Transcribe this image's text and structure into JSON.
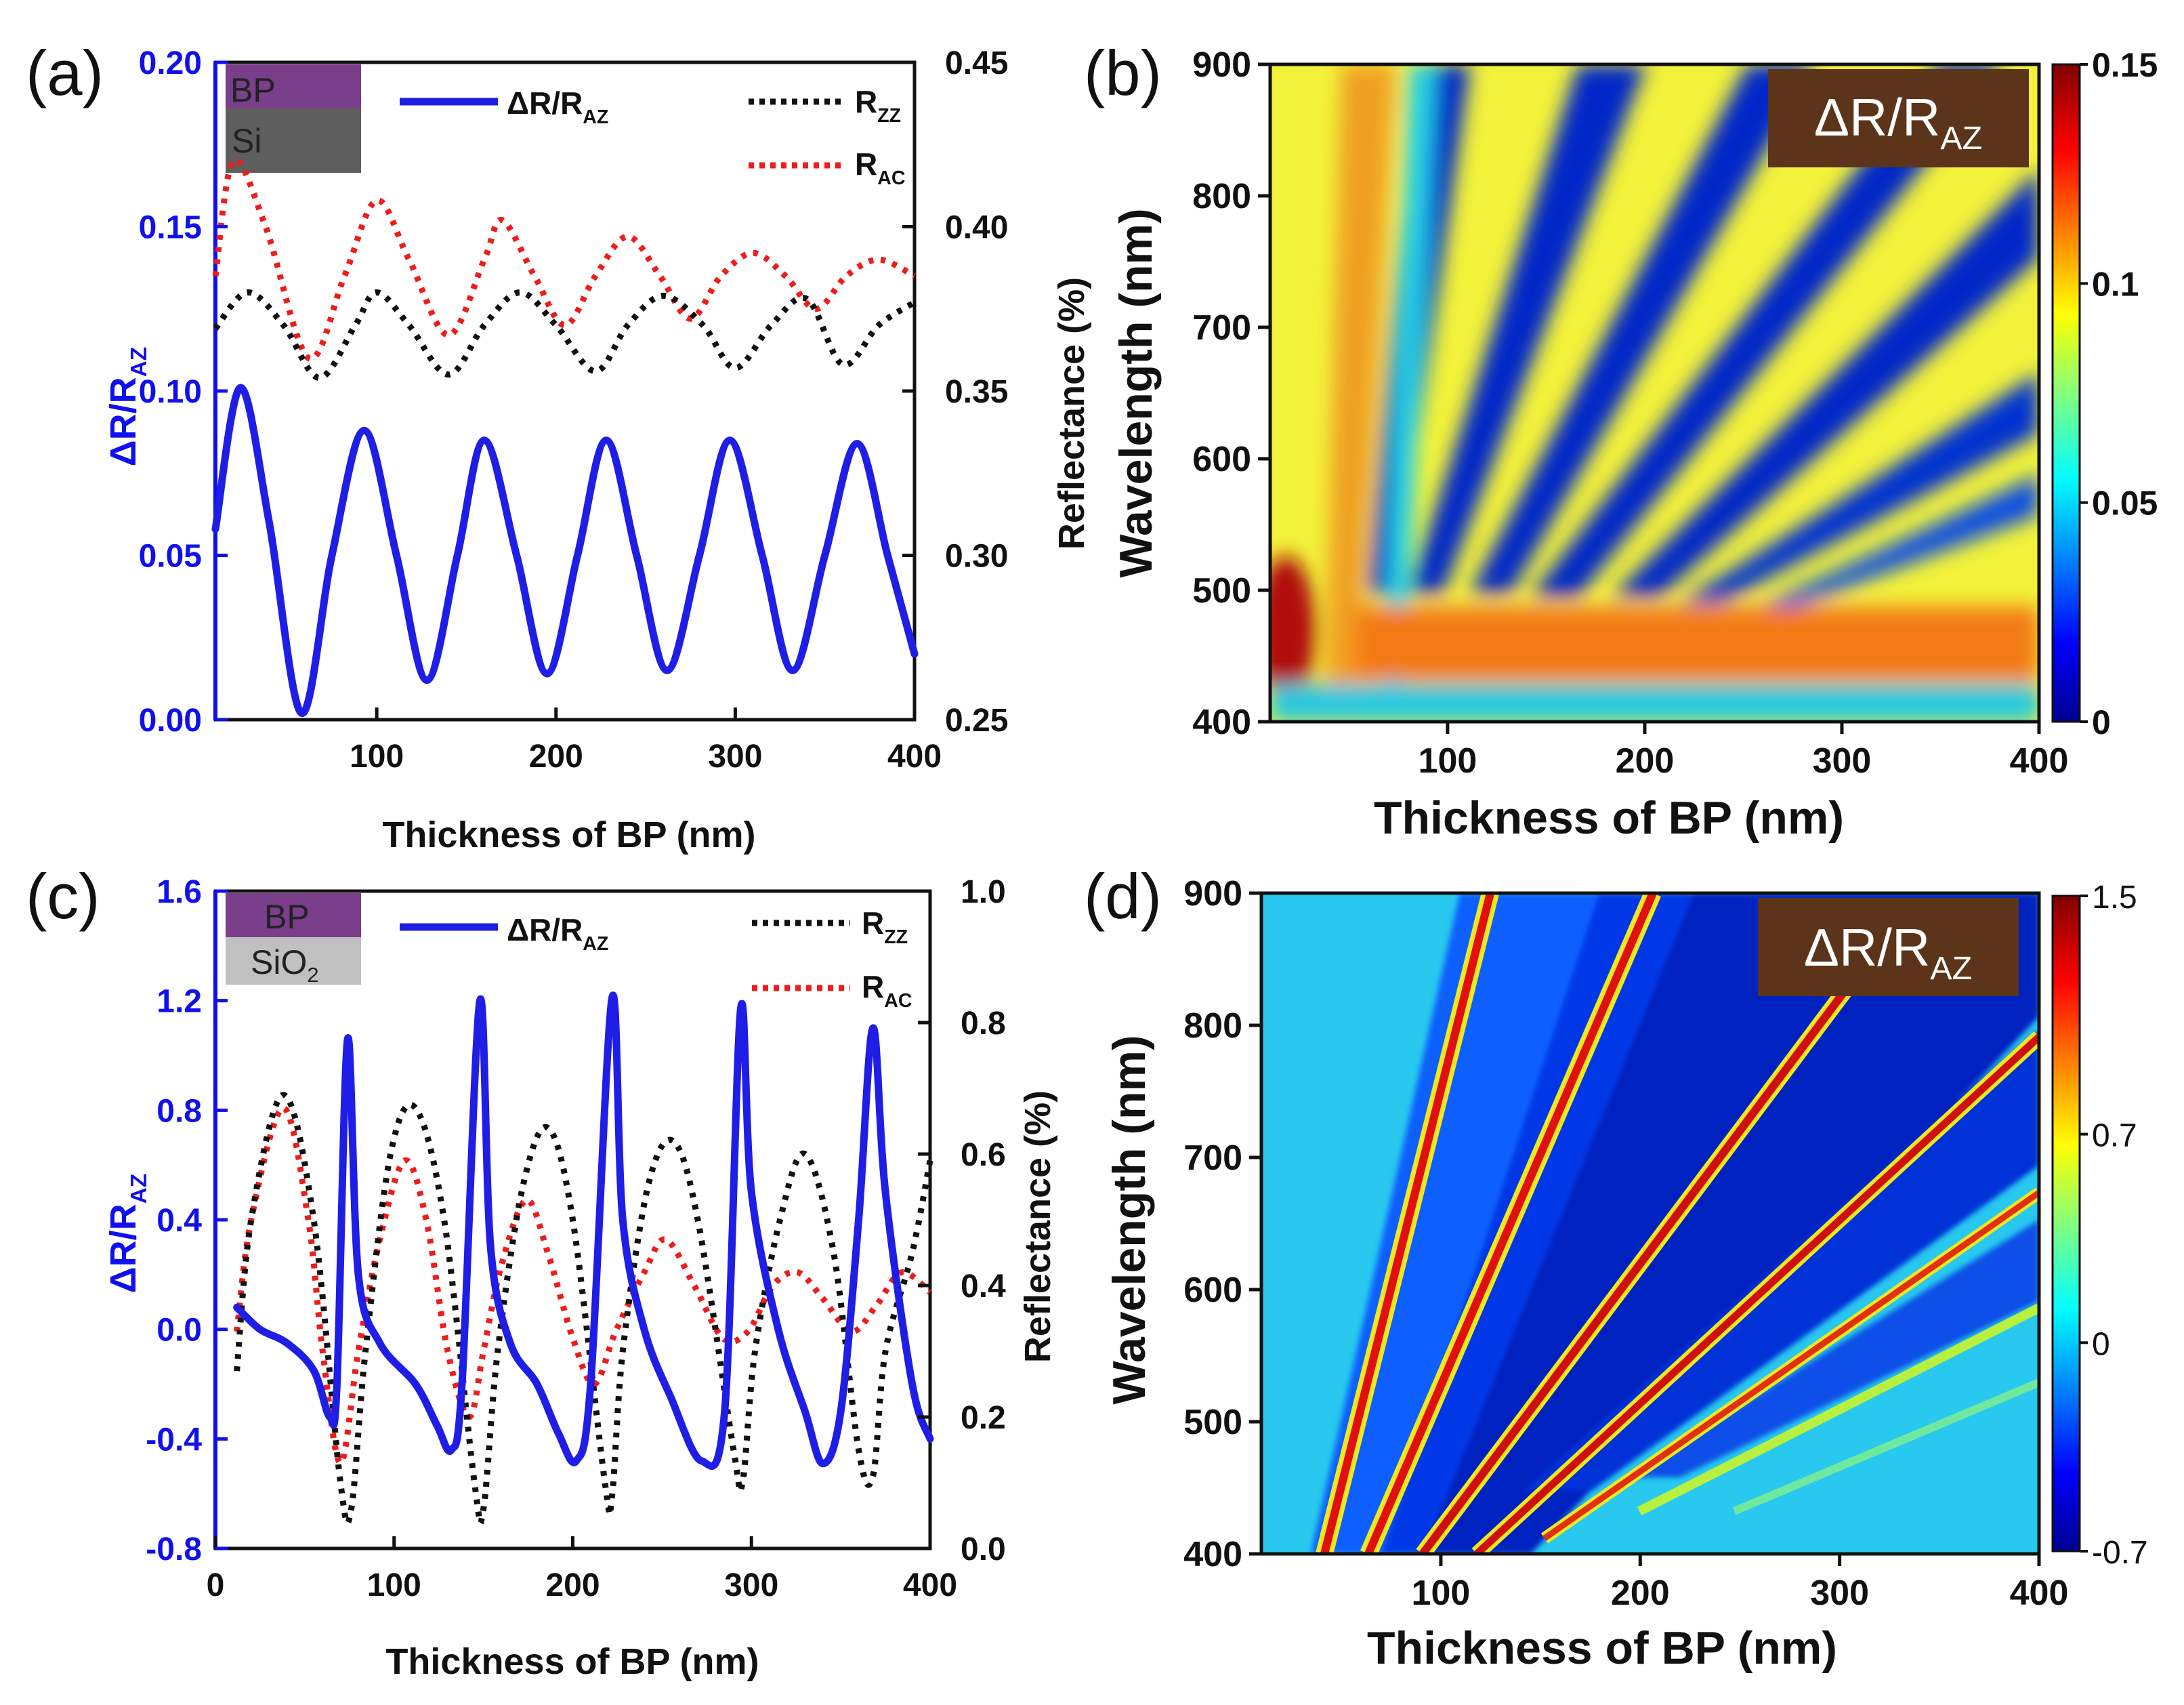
{
  "chart_data": [
    {
      "panel": "(a)",
      "type": "line",
      "inset": [
        "BP",
        "Si"
      ],
      "xlabel": "Thickness of BP (nm)",
      "ylabel_left": "ΔR/R",
      "ylabel_left_sub": "AZ",
      "ylabel_right": "Reflectance (%)",
      "xlim": [
        10,
        400
      ],
      "ylim_left": [
        0,
        0.2
      ],
      "ylim_right": [
        0.25,
        0.45
      ],
      "xticks": [
        "100",
        "200",
        "300",
        "400"
      ],
      "yticks_left": [
        "0.00",
        "0.05",
        "0.10",
        "0.15",
        "0.20"
      ],
      "yticks_right": [
        "0.25",
        "0.30",
        "0.35",
        "0.40",
        "0.45"
      ],
      "series": [
        {
          "name": "ΔR/R",
          "sub": "AZ",
          "axis": "left",
          "color": "#1e1ee6",
          "style": "solid",
          "x": [
            10,
            24,
            40,
            58,
            75,
            93,
            111,
            128,
            145,
            160,
            178,
            195,
            212,
            228,
            245,
            262,
            280,
            297,
            315,
            332,
            350,
            368,
            385,
            400
          ],
          "y": [
            0.058,
            0.101,
            0.06,
            0.002,
            0.05,
            0.088,
            0.05,
            0.012,
            0.05,
            0.085,
            0.05,
            0.014,
            0.05,
            0.085,
            0.05,
            0.015,
            0.05,
            0.085,
            0.05,
            0.015,
            0.05,
            0.084,
            0.05,
            0.02
          ]
        },
        {
          "name": "R",
          "sub": "ZZ",
          "axis": "right",
          "color": "#111111",
          "style": "dotted",
          "x": [
            10,
            28,
            48,
            68,
            88,
            100,
            118,
            140,
            160,
            180,
            200,
            222,
            240,
            260,
            282,
            300,
            320,
            340,
            360,
            380,
            400
          ],
          "y": [
            0.369,
            0.38,
            0.37,
            0.354,
            0.37,
            0.38,
            0.37,
            0.355,
            0.37,
            0.38,
            0.37,
            0.356,
            0.37,
            0.379,
            0.37,
            0.357,
            0.37,
            0.378,
            0.358,
            0.37,
            0.377
          ]
        },
        {
          "name": "R",
          "sub": "AC",
          "axis": "right",
          "color": "#ee1c1c",
          "style": "dotted",
          "x": [
            10,
            20,
            38,
            62,
            82,
            100,
            118,
            140,
            160,
            170,
            188,
            205,
            222,
            240,
            258,
            275,
            292,
            310,
            328,
            345,
            362,
            380,
            400
          ],
          "y": [
            0.385,
            0.42,
            0.4,
            0.36,
            0.385,
            0.408,
            0.39,
            0.367,
            0.39,
            0.402,
            0.385,
            0.37,
            0.385,
            0.397,
            0.385,
            0.372,
            0.385,
            0.392,
            0.385,
            0.375,
            0.385,
            0.39,
            0.385
          ]
        }
      ]
    },
    {
      "panel": "(b)",
      "type": "heatmap",
      "title": "ΔR/R",
      "title_sub": "AZ",
      "xlabel": "Thickness of BP (nm)",
      "ylabel": "Wavelength (nm)",
      "xlim": [
        10,
        400
      ],
      "ylim": [
        400,
        900
      ],
      "xticks": [
        "100",
        "200",
        "300",
        "400"
      ],
      "yticks": [
        "400",
        "500",
        "600",
        "700",
        "800",
        "900"
      ],
      "colorbar": {
        "min": 0,
        "max": 0.15,
        "ticks": [
          "0",
          "0.05",
          "0.1",
          "0.15"
        ]
      }
    },
    {
      "panel": "(c)",
      "type": "line",
      "inset": [
        "BP",
        "SiO",
        "2"
      ],
      "xlabel": "Thickness of BP (nm)",
      "ylabel_left": "ΔR/R",
      "ylabel_left_sub": "AZ",
      "ylabel_right": "Reflectance (%)",
      "xlim": [
        0,
        400
      ],
      "ylim_left": [
        -0.8,
        1.6
      ],
      "ylim_right": [
        0.0,
        1.0
      ],
      "xticks": [
        "0",
        "100",
        "200",
        "300",
        "400"
      ],
      "yticks_left": [
        "-0.8",
        "-0.4",
        "0.0",
        "0.4",
        "0.8",
        "1.2",
        "1.6"
      ],
      "yticks_right": [
        "0.0",
        "0.2",
        "0.4",
        "0.6",
        "0.8",
        "1.0"
      ],
      "series": [
        {
          "name": "ΔR/R",
          "sub": "AZ",
          "axis": "left",
          "color": "#1e1ee6",
          "style": "solid",
          "x": [
            12,
            25,
            40,
            55,
            64,
            68,
            74,
            80,
            92,
            112,
            124,
            132,
            138,
            148,
            154,
            165,
            180,
            192,
            202,
            210,
            222,
            228,
            240,
            255,
            272,
            285,
            294,
            300,
            315,
            330,
            340,
            350,
            360,
            368,
            375,
            390,
            400
          ],
          "y": [
            0.08,
            0.0,
            -0.05,
            -0.15,
            -0.32,
            -0.2,
            1.06,
            0.2,
            -0.05,
            -0.2,
            -0.35,
            -0.44,
            -0.2,
            1.2,
            0.3,
            -0.05,
            -0.2,
            -0.38,
            -0.48,
            -0.2,
            1.21,
            0.4,
            0.0,
            -0.25,
            -0.48,
            -0.3,
            1.17,
            0.5,
            0.0,
            -0.3,
            -0.49,
            -0.3,
            0.4,
            1.1,
            0.5,
            -0.2,
            -0.4
          ]
        },
        {
          "name": "R",
          "sub": "ZZ",
          "axis": "right",
          "color": "#111111",
          "style": "dotted",
          "x": [
            12,
            20,
            38,
            55,
            70,
            76,
            84,
            98,
            112,
            128,
            145,
            150,
            158,
            172,
            186,
            200,
            218,
            222,
            228,
            242,
            256,
            270,
            290,
            295,
            302,
            316,
            330,
            346,
            360,
            368,
            375,
            390,
            400
          ],
          "y": [
            0.27,
            0.5,
            0.69,
            0.5,
            0.1,
            0.06,
            0.3,
            0.6,
            0.67,
            0.5,
            0.1,
            0.06,
            0.3,
            0.55,
            0.64,
            0.5,
            0.1,
            0.08,
            0.3,
            0.55,
            0.62,
            0.5,
            0.15,
            0.1,
            0.3,
            0.5,
            0.6,
            0.45,
            0.15,
            0.11,
            0.3,
            0.45,
            0.59
          ]
        },
        {
          "name": "R",
          "sub": "AC",
          "axis": "right",
          "color": "#ee1c1c",
          "style": "dotted",
          "x": [
            12,
            20,
            38,
            52,
            60,
            70,
            80,
            92,
            106,
            118,
            130,
            142,
            150,
            160,
            174,
            186,
            200,
            212,
            224,
            240,
            252,
            268,
            284,
            298,
            312,
            326,
            340,
            356,
            370,
            384,
            400
          ],
          "y": [
            0.33,
            0.5,
            0.67,
            0.5,
            0.3,
            0.13,
            0.3,
            0.47,
            0.59,
            0.5,
            0.3,
            0.2,
            0.3,
            0.43,
            0.53,
            0.45,
            0.32,
            0.25,
            0.33,
            0.42,
            0.47,
            0.4,
            0.32,
            0.33,
            0.4,
            0.42,
            0.38,
            0.33,
            0.37,
            0.42,
            0.39
          ]
        }
      ]
    },
    {
      "panel": "(d)",
      "type": "heatmap",
      "title": "ΔR/R",
      "title_sub": "AZ",
      "xlabel": "Thickness of BP (nm)",
      "ylabel": "Wavelength (nm)",
      "xlim": [
        10,
        400
      ],
      "ylim": [
        400,
        900
      ],
      "xticks": [
        "100",
        "200",
        "300",
        "400"
      ],
      "yticks": [
        "400",
        "500",
        "600",
        "700",
        "800",
        "900"
      ],
      "colorbar": {
        "min": -0.7,
        "max": 1.5,
        "ticks": [
          "-0.7",
          "0",
          "0.7",
          "1.5"
        ]
      }
    }
  ],
  "legend": {
    "a": [
      {
        "text": "ΔR/R",
        "sub": "AZ"
      },
      {
        "text": "R",
        "sub": "ZZ"
      },
      {
        "text": "R",
        "sub": "AC"
      }
    ],
    "c": [
      {
        "text": "ΔR/R",
        "sub": "AZ"
      },
      {
        "text": "R",
        "sub": "ZZ"
      },
      {
        "text": "R",
        "sub": "AC"
      }
    ]
  },
  "colors": {
    "blue": "#1e1ee6",
    "red": "#ee1c1c",
    "black": "#111111",
    "title_box": "#5c3419",
    "bp": "#7a3e8a",
    "si": "#5e5e5e",
    "sio2": "#c0c0c0"
  }
}
